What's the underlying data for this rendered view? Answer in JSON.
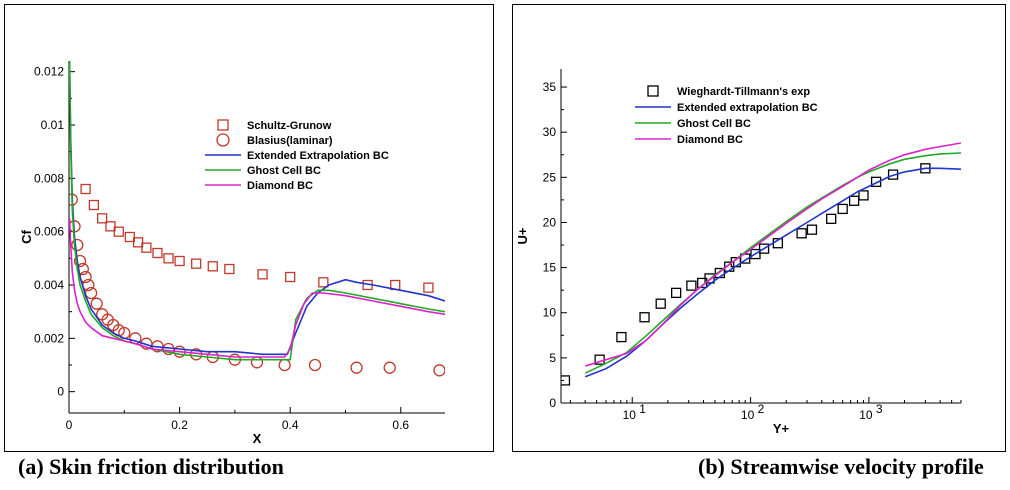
{
  "captions": {
    "a": "(a) Skin friction distribution",
    "b": "(b) Streamwise velocity profile"
  },
  "chart_data": [
    {
      "type": "line",
      "xlabel": "X",
      "ylabel": "Cf",
      "xlim": [
        0,
        0.68
      ],
      "ylim": [
        -0.0008,
        0.0124
      ],
      "xticks": [
        0,
        0.2,
        0.4,
        0.6
      ],
      "xtick_labels": [
        "0",
        "0.2",
        "0.4",
        "0.6"
      ],
      "yticks": [
        0,
        0.002,
        0.004,
        0.006,
        0.008,
        0.01,
        0.012
      ],
      "ytick_labels": [
        "0",
        "0.002",
        "0.004",
        "0.006",
        "0.008",
        "0.01",
        "0.012"
      ],
      "grid": false,
      "legend_position": "center-right",
      "series": [
        {
          "name": "Schultz-Grunow",
          "kind": "marker",
          "marker": "square",
          "color": "#c0392b",
          "x": [
            0.03,
            0.045,
            0.06,
            0.075,
            0.09,
            0.11,
            0.125,
            0.14,
            0.16,
            0.18,
            0.2,
            0.23,
            0.26,
            0.29,
            0.35,
            0.4,
            0.46,
            0.54,
            0.59,
            0.65
          ],
          "y": [
            0.0076,
            0.007,
            0.0065,
            0.0062,
            0.006,
            0.0058,
            0.0056,
            0.0054,
            0.0052,
            0.005,
            0.0049,
            0.0048,
            0.0047,
            0.0046,
            0.0044,
            0.0043,
            0.0041,
            0.004,
            0.004,
            0.0039
          ]
        },
        {
          "name": "Blasius(laminar)",
          "kind": "marker",
          "marker": "circle",
          "color": "#c0392b",
          "x": [
            0.005,
            0.01,
            0.015,
            0.02,
            0.025,
            0.03,
            0.035,
            0.04,
            0.05,
            0.06,
            0.07,
            0.08,
            0.09,
            0.1,
            0.12,
            0.14,
            0.16,
            0.18,
            0.2,
            0.23,
            0.26,
            0.3,
            0.34,
            0.39,
            0.445,
            0.52,
            0.58,
            0.67
          ],
          "y": [
            0.0072,
            0.0062,
            0.0055,
            0.0049,
            0.0046,
            0.0043,
            0.004,
            0.0037,
            0.0033,
            0.0029,
            0.0027,
            0.0025,
            0.0023,
            0.0022,
            0.002,
            0.0018,
            0.0017,
            0.0016,
            0.0015,
            0.0014,
            0.0013,
            0.0012,
            0.0011,
            0.001,
            0.001,
            0.0009,
            0.0009,
            0.0008
          ]
        },
        {
          "name": "Extended Extrapolation BC",
          "kind": "line",
          "color": "#2233cc",
          "x": [
            0.001,
            0.003,
            0.006,
            0.01,
            0.015,
            0.02,
            0.03,
            0.04,
            0.06,
            0.08,
            0.1,
            0.12,
            0.15,
            0.2,
            0.25,
            0.3,
            0.35,
            0.395,
            0.41,
            0.43,
            0.45,
            0.47,
            0.5,
            0.52,
            0.55,
            0.6,
            0.65,
            0.68
          ],
          "y": [
            0.0124,
            0.0095,
            0.0072,
            0.0058,
            0.0049,
            0.0043,
            0.0036,
            0.0031,
            0.0025,
            0.0022,
            0.002,
            0.0019,
            0.0017,
            0.0016,
            0.0015,
            0.0015,
            0.0014,
            0.0014,
            0.0022,
            0.0032,
            0.0037,
            0.004,
            0.0042,
            0.0041,
            0.004,
            0.0038,
            0.0036,
            0.0034
          ]
        },
        {
          "name": "Ghost Cell BC",
          "kind": "line",
          "color": "#22aa22",
          "x": [
            0.001,
            0.003,
            0.006,
            0.01,
            0.015,
            0.02,
            0.03,
            0.04,
            0.06,
            0.08,
            0.1,
            0.12,
            0.15,
            0.2,
            0.25,
            0.3,
            0.35,
            0.4,
            0.41,
            0.43,
            0.45,
            0.47,
            0.5,
            0.55,
            0.6,
            0.65,
            0.68
          ],
          "y": [
            0.0124,
            0.0092,
            0.0068,
            0.0055,
            0.0046,
            0.004,
            0.0034,
            0.0029,
            0.0024,
            0.0021,
            0.0019,
            0.0018,
            0.0016,
            0.0014,
            0.0013,
            0.0012,
            0.0012,
            0.0012,
            0.0027,
            0.0035,
            0.0038,
            0.0038,
            0.0037,
            0.0035,
            0.0033,
            0.0031,
            0.003
          ]
        },
        {
          "name": "Diamond BC",
          "kind": "line",
          "color": "#dd22cc",
          "x": [
            0.001,
            0.003,
            0.006,
            0.01,
            0.015,
            0.02,
            0.03,
            0.04,
            0.06,
            0.08,
            0.1,
            0.12,
            0.15,
            0.2,
            0.25,
            0.3,
            0.35,
            0.39,
            0.4,
            0.41,
            0.425,
            0.44,
            0.46,
            0.5,
            0.55,
            0.6,
            0.65,
            0.68
          ],
          "y": [
            0.0065,
            0.0055,
            0.0045,
            0.0038,
            0.0033,
            0.003,
            0.0026,
            0.0024,
            0.0021,
            0.002,
            0.0019,
            0.0018,
            0.0016,
            0.0015,
            0.0014,
            0.0013,
            0.0013,
            0.0013,
            0.0016,
            0.0025,
            0.0033,
            0.0037,
            0.0037,
            0.0036,
            0.0034,
            0.0032,
            0.003,
            0.0029
          ]
        }
      ]
    },
    {
      "type": "line",
      "xlabel": "Y+",
      "ylabel": "U+",
      "xscale": "log",
      "xlim": [
        2.5,
        6000
      ],
      "ylim": [
        0,
        37
      ],
      "xticks": [
        10,
        100,
        1000
      ],
      "xtick_base": "10",
      "xtick_exponents": [
        "1",
        "2",
        "3"
      ],
      "yticks": [
        0,
        5,
        10,
        15,
        20,
        25,
        30,
        35
      ],
      "ytick_labels": [
        "0",
        "5",
        "10",
        "15",
        "20",
        "25",
        "30",
        "35"
      ],
      "grid": false,
      "legend_position": "top-left",
      "series": [
        {
          "name": "Wieghardt-Tillmann's exp",
          "kind": "marker",
          "marker": "square",
          "color": "#000000",
          "x": [
            2.7,
            5.3,
            8.1,
            12.7,
            17.4,
            23.5,
            31.6,
            39,
            45,
            55,
            66,
            75,
            90,
            110,
            130,
            170,
            270,
            330,
            480,
            600,
            750,
            900,
            1150,
            1600,
            3000
          ],
          "y": [
            2.5,
            4.8,
            7.3,
            9.5,
            11.0,
            12.2,
            13.0,
            13.3,
            13.8,
            14.4,
            15.1,
            15.6,
            16.0,
            16.5,
            17.1,
            17.7,
            18.8,
            19.2,
            20.4,
            21.5,
            22.4,
            23.0,
            24.5,
            25.3,
            26.0
          ]
        },
        {
          "name": "Extended extrapolation BC",
          "kind": "line",
          "color": "#2233cc",
          "x": [
            4,
            6,
            9,
            13,
            18,
            25,
            35,
            50,
            70,
            100,
            150,
            200,
            300,
            400,
            600,
            800,
            1000,
            1500,
            2000,
            3000,
            4000,
            6000
          ],
          "y": [
            2.9,
            3.8,
            5.2,
            6.9,
            8.7,
            10.4,
            12.0,
            13.6,
            14.9,
            16.2,
            17.6,
            18.6,
            20.0,
            21.0,
            22.4,
            23.4,
            24.0,
            25.1,
            25.6,
            26.0,
            26.0,
            25.9
          ]
        },
        {
          "name": "Ghost Cell BC",
          "kind": "line",
          "color": "#22aa22",
          "x": [
            4,
            6,
            9,
            13,
            18,
            25,
            35,
            50,
            70,
            100,
            150,
            200,
            300,
            400,
            600,
            800,
            1000,
            1500,
            2000,
            3000,
            4000,
            6000
          ],
          "y": [
            3.3,
            4.4,
            5.6,
            7.4,
            9.1,
            10.8,
            12.5,
            14.2,
            15.6,
            17.2,
            18.9,
            20.1,
            21.7,
            22.7,
            24.1,
            25.0,
            25.6,
            26.5,
            27.0,
            27.4,
            27.6,
            27.7
          ]
        },
        {
          "name": "Diamond BC",
          "kind": "line",
          "color": "#dd22cc",
          "x": [
            4,
            6,
            9,
            13,
            18,
            25,
            35,
            50,
            70,
            100,
            150,
            200,
            300,
            400,
            600,
            800,
            1000,
            1500,
            2000,
            3000,
            4000,
            6000
          ],
          "y": [
            4.1,
            4.8,
            5.5,
            6.9,
            8.7,
            10.7,
            12.5,
            14.1,
            15.6,
            17.0,
            18.7,
            19.9,
            21.5,
            22.6,
            24.0,
            25.0,
            25.8,
            26.9,
            27.5,
            28.1,
            28.4,
            28.8
          ]
        }
      ]
    }
  ]
}
